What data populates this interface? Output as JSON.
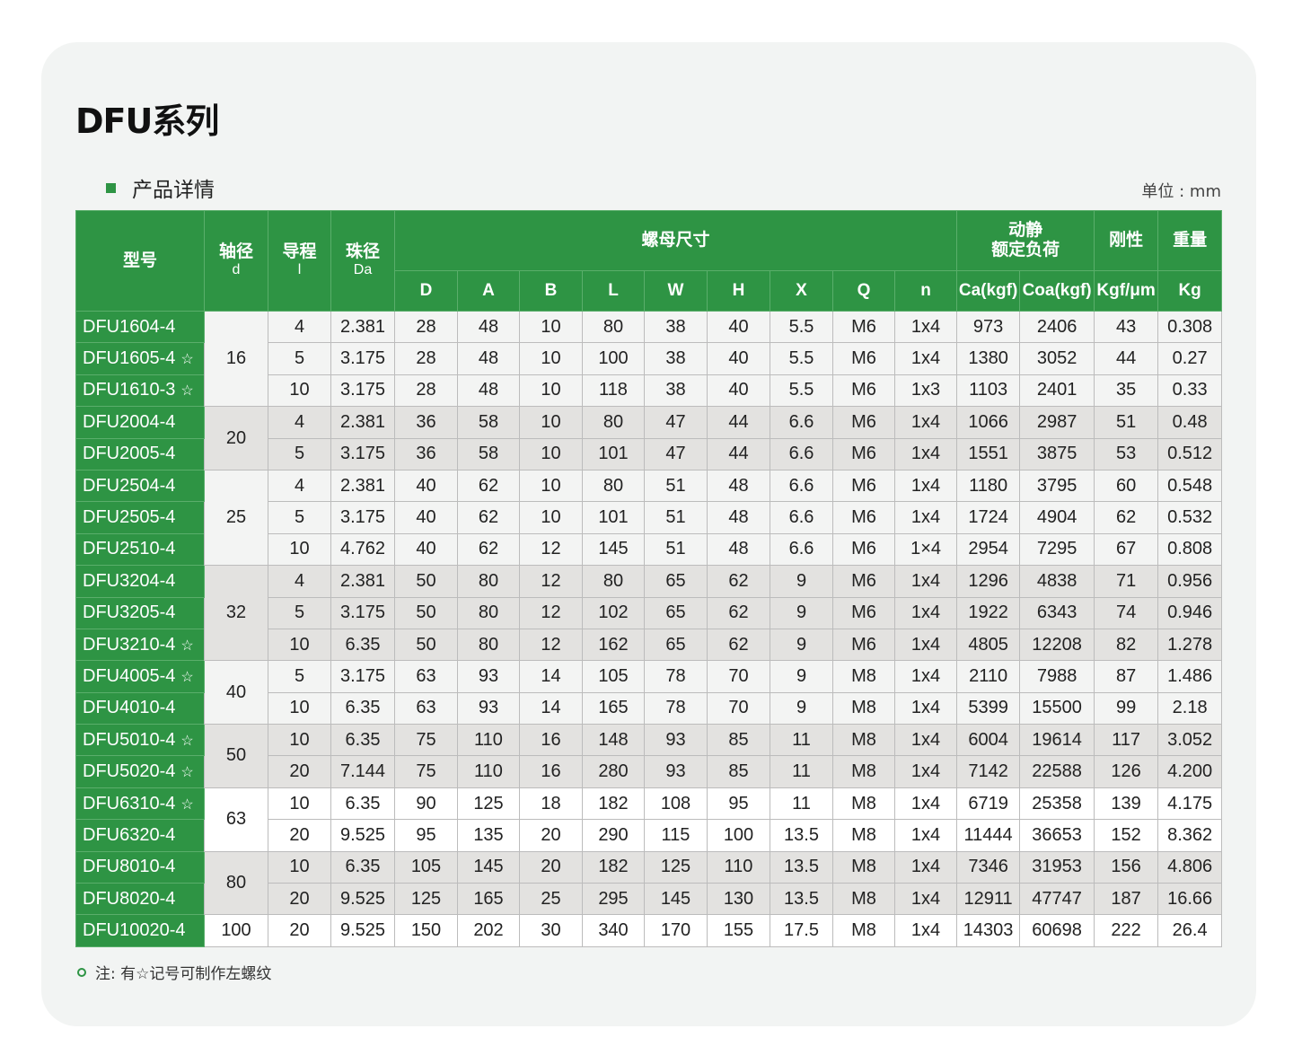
{
  "title": "DFU系列",
  "section": "产品详情",
  "unit": "单位 : mm",
  "colors": {
    "accent": "#2e9444",
    "group_gray": "#e3e2e0",
    "group_light": "#f3f4f3"
  },
  "header": {
    "model": "型号",
    "shaft": "轴径",
    "shaft_sym": "d",
    "lead": "导程",
    "lead_sym": "l",
    "ball": "珠径",
    "ball_sym": "Da",
    "nut": "螺母尺寸",
    "load1": "动静",
    "load2": "额定负荷",
    "rigidity": "刚性",
    "weight": "重量",
    "cols": [
      "D",
      "A",
      "B",
      "L",
      "W",
      "H",
      "X",
      "Q",
      "n",
      "Ca(kgf)",
      "Coa(kgf)",
      "Kgf/μm",
      "Kg"
    ]
  },
  "groups": [
    {
      "d": "16",
      "shade": 0,
      "rows": [
        {
          "model": "DFU1604-4",
          "star": false,
          "v": [
            "4",
            "2.381",
            "28",
            "48",
            "10",
            "80",
            "38",
            "40",
            "5.5",
            "M6",
            "1x4",
            "973",
            "2406",
            "43",
            "0.308"
          ]
        },
        {
          "model": "DFU1605-4",
          "star": true,
          "v": [
            "5",
            "3.175",
            "28",
            "48",
            "10",
            "100",
            "38",
            "40",
            "5.5",
            "M6",
            "1x4",
            "1380",
            "3052",
            "44",
            "0.27"
          ]
        },
        {
          "model": "DFU1610-3",
          "star": true,
          "v": [
            "10",
            "3.175",
            "28",
            "48",
            "10",
            "118",
            "38",
            "40",
            "5.5",
            "M6",
            "1x3",
            "1103",
            "2401",
            "35",
            "0.33"
          ]
        }
      ]
    },
    {
      "d": "20",
      "shade": 1,
      "rows": [
        {
          "model": "DFU2004-4",
          "star": false,
          "v": [
            "4",
            "2.381",
            "36",
            "58",
            "10",
            "80",
            "47",
            "44",
            "6.6",
            "M6",
            "1x4",
            "1066",
            "2987",
            "51",
            "0.48"
          ]
        },
        {
          "model": "DFU2005-4",
          "star": false,
          "v": [
            "5",
            "3.175",
            "36",
            "58",
            "10",
            "101",
            "47",
            "44",
            "6.6",
            "M6",
            "1x4",
            "1551",
            "3875",
            "53",
            "0.512"
          ]
        }
      ]
    },
    {
      "d": "25",
      "shade": 0,
      "rows": [
        {
          "model": "DFU2504-4",
          "star": false,
          "v": [
            "4",
            "2.381",
            "40",
            "62",
            "10",
            "80",
            "51",
            "48",
            "6.6",
            "M6",
            "1x4",
            "1180",
            "3795",
            "60",
            "0.548"
          ]
        },
        {
          "model": "DFU2505-4",
          "star": false,
          "v": [
            "5",
            "3.175",
            "40",
            "62",
            "10",
            "101",
            "51",
            "48",
            "6.6",
            "M6",
            "1x4",
            "1724",
            "4904",
            "62",
            "0.532"
          ]
        },
        {
          "model": "DFU2510-4",
          "star": false,
          "v": [
            "10",
            "4.762",
            "40",
            "62",
            "12",
            "145",
            "51",
            "48",
            "6.6",
            "M6",
            "1×4",
            "2954",
            "7295",
            "67",
            "0.808"
          ]
        }
      ]
    },
    {
      "d": "32",
      "shade": 1,
      "rows": [
        {
          "model": "DFU3204-4",
          "star": false,
          "v": [
            "4",
            "2.381",
            "50",
            "80",
            "12",
            "80",
            "65",
            "62",
            "9",
            "M6",
            "1x4",
            "1296",
            "4838",
            "71",
            "0.956"
          ]
        },
        {
          "model": "DFU3205-4",
          "star": false,
          "v": [
            "5",
            "3.175",
            "50",
            "80",
            "12",
            "102",
            "65",
            "62",
            "9",
            "M6",
            "1x4",
            "1922",
            "6343",
            "74",
            "0.946"
          ]
        },
        {
          "model": "DFU3210-4",
          "star": true,
          "v": [
            "10",
            "6.35",
            "50",
            "80",
            "12",
            "162",
            "65",
            "62",
            "9",
            "M6",
            "1x4",
            "4805",
            "12208",
            "82",
            "1.278"
          ]
        }
      ]
    },
    {
      "d": "40",
      "shade": 0,
      "rows": [
        {
          "model": "DFU4005-4",
          "star": true,
          "v": [
            "5",
            "3.175",
            "63",
            "93",
            "14",
            "105",
            "78",
            "70",
            "9",
            "M8",
            "1x4",
            "2110",
            "7988",
            "87",
            "1.486"
          ]
        },
        {
          "model": "DFU4010-4",
          "star": false,
          "v": [
            "10",
            "6.35",
            "63",
            "93",
            "14",
            "165",
            "78",
            "70",
            "9",
            "M8",
            "1x4",
            "5399",
            "15500",
            "99",
            "2.18"
          ]
        }
      ]
    },
    {
      "d": "50",
      "shade": 1,
      "rows": [
        {
          "model": "DFU5010-4",
          "star": true,
          "v": [
            "10",
            "6.35",
            "75",
            "110",
            "16",
            "148",
            "93",
            "85",
            "11",
            "M8",
            "1x4",
            "6004",
            "19614",
            "117",
            "3.052"
          ]
        },
        {
          "model": "DFU5020-4",
          "star": true,
          "v": [
            "20",
            "7.144",
            "75",
            "110",
            "16",
            "280",
            "93",
            "85",
            "11",
            "M8",
            "1x4",
            "7142",
            "22588",
            "126",
            "4.200"
          ]
        }
      ]
    },
    {
      "d": "63",
      "shade": 2,
      "rows": [
        {
          "model": "DFU6310-4",
          "star": true,
          "v": [
            "10",
            "6.35",
            "90",
            "125",
            "18",
            "182",
            "108",
            "95",
            "11",
            "M8",
            "1x4",
            "6719",
            "25358",
            "139",
            "4.175"
          ]
        },
        {
          "model": "DFU6320-4",
          "star": false,
          "v": [
            "20",
            "9.525",
            "95",
            "135",
            "20",
            "290",
            "115",
            "100",
            "13.5",
            "M8",
            "1x4",
            "11444",
            "36653",
            "152",
            "8.362"
          ]
        }
      ]
    },
    {
      "d": "80",
      "shade": 1,
      "rows": [
        {
          "model": "DFU8010-4",
          "star": false,
          "v": [
            "10",
            "6.35",
            "105",
            "145",
            "20",
            "182",
            "125",
            "110",
            "13.5",
            "M8",
            "1x4",
            "7346",
            "31953",
            "156",
            "4.806"
          ]
        },
        {
          "model": "DFU8020-4",
          "star": false,
          "v": [
            "20",
            "9.525",
            "125",
            "165",
            "25",
            "295",
            "145",
            "130",
            "13.5",
            "M8",
            "1x4",
            "12911",
            "47747",
            "187",
            "16.66"
          ]
        }
      ]
    },
    {
      "d": "100",
      "shade": 2,
      "rows": [
        {
          "model": "DFU10020-4",
          "star": false,
          "v": [
            "20",
            "9.525",
            "150",
            "202",
            "30",
            "340",
            "170",
            "155",
            "17.5",
            "M8",
            "1x4",
            "14303",
            "60698",
            "222",
            "26.4"
          ]
        }
      ]
    }
  ],
  "star_glyph": "☆",
  "note": "注: 有☆记号可制作左螺纹"
}
